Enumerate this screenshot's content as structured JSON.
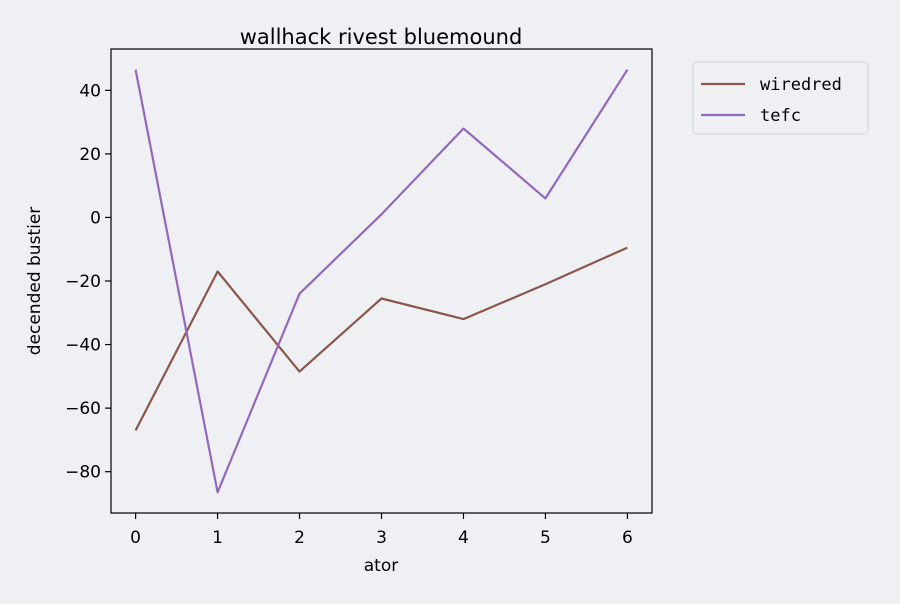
{
  "chart_data": {
    "type": "line",
    "title": "wallhack rivest bluemound",
    "xlabel": "ator",
    "ylabel": "decended bustier",
    "x": [
      0,
      1,
      2,
      3,
      4,
      5,
      6
    ],
    "xlim": [
      -0.3,
      6.3
    ],
    "ylim": [
      -93,
      53
    ],
    "xticks": [
      0,
      1,
      2,
      3,
      4,
      5,
      6
    ],
    "yticks": [
      -80,
      -60,
      -40,
      -20,
      0,
      20,
      40
    ],
    "grid": false,
    "legend_position": "outside-top-right",
    "series": [
      {
        "name": "wiredred",
        "color": "#8c564b",
        "values": [
          -67,
          -17,
          -48.5,
          -25.5,
          -32,
          -21,
          -9.5
        ]
      },
      {
        "name": "tefc",
        "color": "#9467bd",
        "values": [
          46.5,
          -86.5,
          -24,
          1,
          28,
          6,
          46.5
        ]
      }
    ]
  }
}
